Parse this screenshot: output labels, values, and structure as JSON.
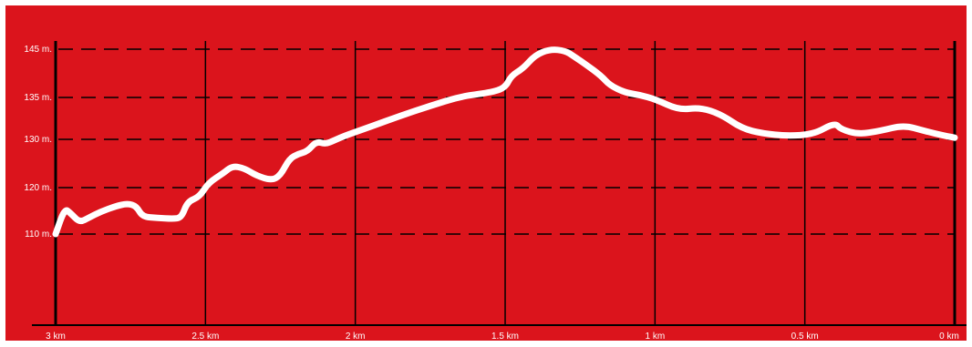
{
  "chart_data": {
    "type": "line",
    "title": "",
    "xlabel": "",
    "ylabel": "",
    "x_ticks": [
      {
        "value": 3,
        "label": "3 km"
      },
      {
        "value": 2.5,
        "label": "2.5 km"
      },
      {
        "value": 2,
        "label": "2 km"
      },
      {
        "value": 1.5,
        "label": "1.5 km"
      },
      {
        "value": 1,
        "label": "1 km"
      },
      {
        "value": 0.5,
        "label": "0.5 km"
      },
      {
        "value": 0,
        "label": "0 km"
      }
    ],
    "y_ticks": [
      {
        "value": 110,
        "label": "110 m."
      },
      {
        "value": 120,
        "label": "120 m."
      },
      {
        "value": 130,
        "label": "130 m."
      },
      {
        "value": 135,
        "label": "135 m."
      },
      {
        "value": 145,
        "label": "145 m."
      }
    ],
    "x_reversed": true,
    "xlim": [
      3,
      0
    ],
    "grid": true,
    "series": [
      {
        "color": "#ffffff",
        "points": [
          [
            3.0,
            110.0
          ],
          [
            2.97,
            115.5
          ],
          [
            2.95,
            114.5
          ],
          [
            2.92,
            112.5
          ],
          [
            2.89,
            113.5
          ],
          [
            2.85,
            114.8
          ],
          [
            2.8,
            116.0
          ],
          [
            2.76,
            116.6
          ],
          [
            2.73,
            116.0
          ],
          [
            2.71,
            113.7
          ],
          [
            2.66,
            113.5
          ],
          [
            2.61,
            113.3
          ],
          [
            2.58,
            113.5
          ],
          [
            2.56,
            117.0
          ],
          [
            2.52,
            118.0
          ],
          [
            2.49,
            121.0
          ],
          [
            2.44,
            123.0
          ],
          [
            2.41,
            124.5
          ],
          [
            2.37,
            124.0
          ],
          [
            2.33,
            122.5
          ],
          [
            2.28,
            121.5
          ],
          [
            2.25,
            122.5
          ],
          [
            2.22,
            126.0
          ],
          [
            2.19,
            127.0
          ],
          [
            2.16,
            127.5
          ],
          [
            2.13,
            129.6
          ],
          [
            2.1,
            129.0
          ],
          [
            2.07,
            129.8
          ],
          [
            2.03,
            130.5
          ],
          [
            1.95,
            131.5
          ],
          [
            1.85,
            132.8
          ],
          [
            1.75,
            134.0
          ],
          [
            1.65,
            135.2
          ],
          [
            1.55,
            136.0
          ],
          [
            1.5,
            137.0
          ],
          [
            1.48,
            139.5
          ],
          [
            1.44,
            141.0
          ],
          [
            1.4,
            143.8
          ],
          [
            1.35,
            145.0
          ],
          [
            1.3,
            144.7
          ],
          [
            1.27,
            143.5
          ],
          [
            1.23,
            141.8
          ],
          [
            1.18,
            139.5
          ],
          [
            1.15,
            137.5
          ],
          [
            1.1,
            136.0
          ],
          [
            1.05,
            135.5
          ],
          [
            1.0,
            134.8
          ],
          [
            0.92,
            133.5
          ],
          [
            0.85,
            133.8
          ],
          [
            0.78,
            133.0
          ],
          [
            0.71,
            131.3
          ],
          [
            0.64,
            130.7
          ],
          [
            0.56,
            130.4
          ],
          [
            0.47,
            130.6
          ],
          [
            0.4,
            132.0
          ],
          [
            0.38,
            131.2
          ],
          [
            0.32,
            130.6
          ],
          [
            0.25,
            131.0
          ],
          [
            0.17,
            131.7
          ],
          [
            0.1,
            131.0
          ],
          [
            0.03,
            130.4
          ],
          [
            0.0,
            130.2
          ]
        ]
      }
    ]
  }
}
